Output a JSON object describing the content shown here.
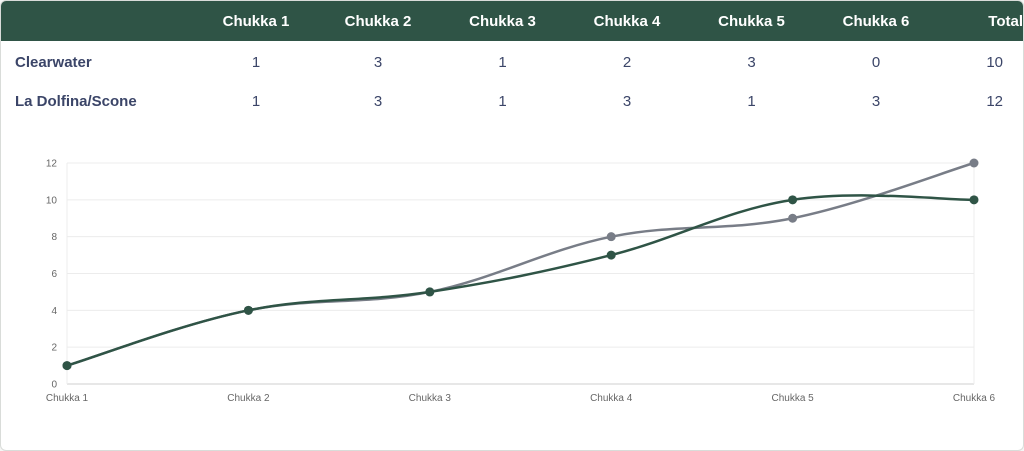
{
  "table": {
    "headers": [
      "",
      "Chukka 1",
      "Chukka 2",
      "Chukka 3",
      "Chukka 4",
      "Chukka 5",
      "Chukka 6",
      "Total"
    ],
    "rows": [
      {
        "team": "Clearwater",
        "scores": [
          "1",
          "3",
          "1",
          "2",
          "3",
          "0"
        ],
        "total": "10"
      },
      {
        "team": "La Dolfina/Scone",
        "scores": [
          "1",
          "3",
          "1",
          "3",
          "1",
          "3"
        ],
        "total": "12"
      }
    ]
  },
  "chart_data": {
    "type": "line",
    "categories": [
      "Chukka 1",
      "Chukka 2",
      "Chukka 3",
      "Chukka 4",
      "Chukka 5",
      "Chukka 6"
    ],
    "series": [
      {
        "values": [
          1,
          4,
          5,
          8,
          9,
          12
        ],
        "color": "#787d87"
      },
      {
        "values": [
          1,
          4,
          5,
          7,
          10,
          10
        ],
        "color": "#2f5446"
      }
    ],
    "ylim": [
      0,
      12
    ],
    "yticks": [
      0,
      2,
      4,
      6,
      8,
      10,
      12
    ],
    "grid": true,
    "legend": "none"
  }
}
